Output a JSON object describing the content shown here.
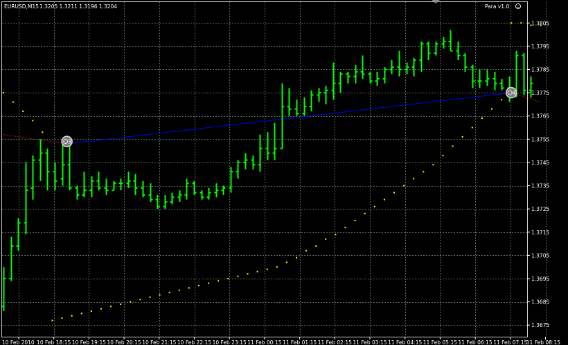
{
  "header": {
    "symbol": "EURUSD,M15",
    "ohlc": "1.3205 1.3211 1.3196 1.3204",
    "indicator": "Para v1.0",
    "smiley_icon": "smiley-icon"
  },
  "colors": {
    "background": "#000000",
    "grid": "#5a6e5a",
    "bar": "#00ff00",
    "sar": "#ffff00",
    "trendline": "#0000ff",
    "ray": "#b22222",
    "axis_text": "#ffffff",
    "frame": "#cfcfcf"
  },
  "chart_data": {
    "type": "bar",
    "title": "EURUSD,M15",
    "ylim": [
      1.367,
      1.3814
    ],
    "y_ticks": [
      1.3675,
      1.3685,
      1.3695,
      1.3705,
      1.3715,
      1.3725,
      1.3735,
      1.3745,
      1.3755,
      1.3765,
      1.3775,
      1.3785,
      1.3795,
      1.3805
    ],
    "x_ticks": [
      "10 Feb 2010",
      "10 Feb 18:15",
      "10 Feb 19:15",
      "10 Feb 20:15",
      "10 Feb 21:15",
      "10 Feb 22:15",
      "10 Feb 23:15",
      "11 Feb 00:15",
      "11 Feb 01:15",
      "11 Feb 02:15",
      "11 Feb 03:15",
      "11 Feb 04:15",
      "11 Feb 05:15",
      "11 Feb 06:15",
      "11 Feb 07:15",
      "11 Feb 08:15"
    ],
    "grid": true,
    "bars": [
      {
        "o": 1.3683,
        "h": 1.37,
        "l": 1.3681,
        "c": 1.3695
      },
      {
        "o": 1.3695,
        "h": 1.3713,
        "l": 1.3694,
        "c": 1.3709
      },
      {
        "o": 1.3709,
        "h": 1.3721,
        "l": 1.3707,
        "c": 1.3719
      },
      {
        "o": 1.3719,
        "h": 1.3745,
        "l": 1.3714,
        "c": 1.3733
      },
      {
        "o": 1.3734,
        "h": 1.3748,
        "l": 1.3729,
        "c": 1.3746
      },
      {
        "o": 1.3746,
        "h": 1.3755,
        "l": 1.3737,
        "c": 1.3749
      },
      {
        "o": 1.3749,
        "h": 1.3751,
        "l": 1.3733,
        "c": 1.3741
      },
      {
        "o": 1.3741,
        "h": 1.3745,
        "l": 1.3733,
        "c": 1.3737
      },
      {
        "o": 1.3738,
        "h": 1.3754,
        "l": 1.3735,
        "c": 1.3744
      },
      {
        "o": 1.3744,
        "h": 1.3752,
        "l": 1.3733,
        "c": 1.3734
      },
      {
        "o": 1.3734,
        "h": 1.3735,
        "l": 1.3729,
        "c": 1.3731
      },
      {
        "o": 1.3731,
        "h": 1.3741,
        "l": 1.373,
        "c": 1.3733
      },
      {
        "o": 1.3733,
        "h": 1.3739,
        "l": 1.373,
        "c": 1.3737
      },
      {
        "o": 1.3737,
        "h": 1.3741,
        "l": 1.3733,
        "c": 1.3734
      },
      {
        "o": 1.3734,
        "h": 1.3738,
        "l": 1.3731,
        "c": 1.3733
      },
      {
        "o": 1.3733,
        "h": 1.3737,
        "l": 1.3733,
        "c": 1.3736
      },
      {
        "o": 1.3736,
        "h": 1.3738,
        "l": 1.3733,
        "c": 1.3736
      },
      {
        "o": 1.3736,
        "h": 1.3741,
        "l": 1.3734,
        "c": 1.3737
      },
      {
        "o": 1.3737,
        "h": 1.374,
        "l": 1.3731,
        "c": 1.3734
      },
      {
        "o": 1.3734,
        "h": 1.3737,
        "l": 1.373,
        "c": 1.3731
      },
      {
        "o": 1.3731,
        "h": 1.3736,
        "l": 1.3728,
        "c": 1.3729
      },
      {
        "o": 1.3729,
        "h": 1.3731,
        "l": 1.3725,
        "c": 1.3726
      },
      {
        "o": 1.3726,
        "h": 1.3731,
        "l": 1.3725,
        "c": 1.3728
      },
      {
        "o": 1.3728,
        "h": 1.3732,
        "l": 1.3727,
        "c": 1.373
      },
      {
        "o": 1.373,
        "h": 1.3733,
        "l": 1.3728,
        "c": 1.3731
      },
      {
        "o": 1.3731,
        "h": 1.3738,
        "l": 1.3729,
        "c": 1.3736
      },
      {
        "o": 1.3736,
        "h": 1.3737,
        "l": 1.3731,
        "c": 1.3732
      },
      {
        "o": 1.3732,
        "h": 1.3733,
        "l": 1.3729,
        "c": 1.373
      },
      {
        "o": 1.373,
        "h": 1.3734,
        "l": 1.3729,
        "c": 1.3732
      },
      {
        "o": 1.3732,
        "h": 1.3736,
        "l": 1.373,
        "c": 1.3733
      },
      {
        "o": 1.3733,
        "h": 1.3735,
        "l": 1.3731,
        "c": 1.3734
      },
      {
        "o": 1.3734,
        "h": 1.3743,
        "l": 1.3732,
        "c": 1.3741
      },
      {
        "o": 1.3741,
        "h": 1.3746,
        "l": 1.3738,
        "c": 1.3745
      },
      {
        "o": 1.3745,
        "h": 1.3749,
        "l": 1.3742,
        "c": 1.3746
      },
      {
        "o": 1.3746,
        "h": 1.3748,
        "l": 1.3742,
        "c": 1.3744
      },
      {
        "o": 1.3744,
        "h": 1.3757,
        "l": 1.3741,
        "c": 1.3751
      },
      {
        "o": 1.3751,
        "h": 1.3758,
        "l": 1.3746,
        "c": 1.3749
      },
      {
        "o": 1.3749,
        "h": 1.3762,
        "l": 1.3746,
        "c": 1.3751
      },
      {
        "o": 1.3751,
        "h": 1.3779,
        "l": 1.3751,
        "c": 1.3769
      },
      {
        "o": 1.3769,
        "h": 1.3777,
        "l": 1.3765,
        "c": 1.3768
      },
      {
        "o": 1.3768,
        "h": 1.3772,
        "l": 1.3765,
        "c": 1.3766
      },
      {
        "o": 1.3766,
        "h": 1.3773,
        "l": 1.3765,
        "c": 1.3769
      },
      {
        "o": 1.3769,
        "h": 1.3776,
        "l": 1.3767,
        "c": 1.3774
      },
      {
        "o": 1.3774,
        "h": 1.3777,
        "l": 1.3771,
        "c": 1.3775
      },
      {
        "o": 1.3775,
        "h": 1.3778,
        "l": 1.377,
        "c": 1.3776
      },
      {
        "o": 1.3776,
        "h": 1.3788,
        "l": 1.3772,
        "c": 1.3779
      },
      {
        "o": 1.3779,
        "h": 1.3784,
        "l": 1.3775,
        "c": 1.3783
      },
      {
        "o": 1.3783,
        "h": 1.3784,
        "l": 1.3779,
        "c": 1.3782
      },
      {
        "o": 1.3782,
        "h": 1.3787,
        "l": 1.3779,
        "c": 1.3784
      },
      {
        "o": 1.3784,
        "h": 1.3791,
        "l": 1.3781,
        "c": 1.3783
      },
      {
        "o": 1.3783,
        "h": 1.3784,
        "l": 1.3779,
        "c": 1.378
      },
      {
        "o": 1.378,
        "h": 1.3784,
        "l": 1.3778,
        "c": 1.3781
      },
      {
        "o": 1.3781,
        "h": 1.3786,
        "l": 1.3779,
        "c": 1.3785
      },
      {
        "o": 1.3785,
        "h": 1.3789,
        "l": 1.3783,
        "c": 1.3786
      },
      {
        "o": 1.3786,
        "h": 1.3793,
        "l": 1.3782,
        "c": 1.3785
      },
      {
        "o": 1.3785,
        "h": 1.3788,
        "l": 1.3783,
        "c": 1.3786
      },
      {
        "o": 1.3786,
        "h": 1.379,
        "l": 1.3782,
        "c": 1.3789
      },
      {
        "o": 1.3789,
        "h": 1.3797,
        "l": 1.3784,
        "c": 1.3796
      },
      {
        "o": 1.3796,
        "h": 1.3797,
        "l": 1.3789,
        "c": 1.3792
      },
      {
        "o": 1.3792,
        "h": 1.3797,
        "l": 1.3791,
        "c": 1.3796
      },
      {
        "o": 1.3796,
        "h": 1.3799,
        "l": 1.3794,
        "c": 1.3797
      },
      {
        "o": 1.3797,
        "h": 1.3802,
        "l": 1.3793,
        "c": 1.3793
      },
      {
        "o": 1.3793,
        "h": 1.3797,
        "l": 1.3789,
        "c": 1.3791
      },
      {
        "o": 1.3791,
        "h": 1.3792,
        "l": 1.3784,
        "c": 1.3786
      },
      {
        "o": 1.3786,
        "h": 1.3787,
        "l": 1.3777,
        "c": 1.378
      },
      {
        "o": 1.378,
        "h": 1.3785,
        "l": 1.3777,
        "c": 1.378
      },
      {
        "o": 1.378,
        "h": 1.3785,
        "l": 1.3778,
        "c": 1.3781
      },
      {
        "o": 1.3781,
        "h": 1.3784,
        "l": 1.3776,
        "c": 1.3779
      },
      {
        "o": 1.3779,
        "h": 1.3781,
        "l": 1.3776,
        "c": 1.3777
      },
      {
        "o": 1.3777,
        "h": 1.3782,
        "l": 1.3771,
        "c": 1.3774
      },
      {
        "o": 1.3774,
        "h": 1.3793,
        "l": 1.3773,
        "c": 1.3791
      },
      {
        "o": 1.3791,
        "h": 1.3792,
        "l": 1.3774,
        "c": 1.3776
      },
      {
        "o": 1.3776,
        "h": 1.3782,
        "l": 1.3773,
        "c": 1.3779
      }
    ],
    "sar": [
      [
        0,
        1.3775
      ],
      [
        2,
        1.3771
      ],
      [
        4,
        1.3767
      ],
      [
        6,
        1.3763
      ],
      [
        8,
        1.3758
      ],
      [
        10,
        1.3677
      ],
      [
        12,
        1.3678
      ],
      [
        14,
        1.3679
      ],
      [
        16,
        1.368
      ],
      [
        18,
        1.3681
      ],
      [
        20,
        1.3682
      ],
      [
        22,
        1.3683
      ],
      [
        24,
        1.3684
      ],
      [
        26,
        1.3685
      ],
      [
        28,
        1.3686
      ],
      [
        30,
        1.3687
      ],
      [
        32,
        1.3688
      ],
      [
        34,
        1.3689
      ],
      [
        36,
        1.369
      ],
      [
        38,
        1.3691
      ],
      [
        40,
        1.3692
      ],
      [
        42,
        1.3693
      ],
      [
        44,
        1.3694
      ],
      [
        46,
        1.3695
      ],
      [
        48,
        1.3696
      ],
      [
        50,
        1.3697
      ],
      [
        52,
        1.3698
      ],
      [
        54,
        1.3699
      ],
      [
        56,
        1.37
      ],
      [
        58,
        1.3702
      ],
      [
        60,
        1.3704
      ],
      [
        62,
        1.3707
      ],
      [
        64,
        1.3709
      ],
      [
        66,
        1.3712
      ],
      [
        68,
        1.3714
      ],
      [
        70,
        1.3717
      ],
      [
        72,
        1.372
      ],
      [
        74,
        1.3723
      ],
      [
        76,
        1.3726
      ],
      [
        78,
        1.3729
      ],
      [
        80,
        1.3732
      ],
      [
        82,
        1.3735
      ],
      [
        84,
        1.3738
      ],
      [
        86,
        1.3741
      ],
      [
        88,
        1.3744
      ],
      [
        90,
        1.3748
      ],
      [
        92,
        1.3752
      ],
      [
        94,
        1.3756
      ],
      [
        96,
        1.376
      ],
      [
        98,
        1.3764
      ],
      [
        100,
        1.3768
      ],
      [
        102,
        1.3772
      ],
      [
        104,
        1.3805
      ],
      [
        106,
        1.3805
      ],
      [
        108,
        1.3804
      ],
      [
        110,
        1.3804
      ]
    ],
    "trendline": {
      "from": [
        13,
        1.3753
      ],
      "to": [
        104,
        1.3775
      ]
    },
    "ray_left": {
      "from": [
        0,
        1.3757
      ],
      "to": [
        13,
        1.3753
      ]
    },
    "ray_right": {
      "from": [
        104,
        1.3775
      ],
      "to": [
        110,
        1.3771
      ]
    },
    "markers": [
      {
        "label": "3",
        "at": [
          13,
          1.3754
        ]
      },
      {
        "label": "4",
        "at": [
          104,
          1.3775
        ]
      }
    ]
  }
}
